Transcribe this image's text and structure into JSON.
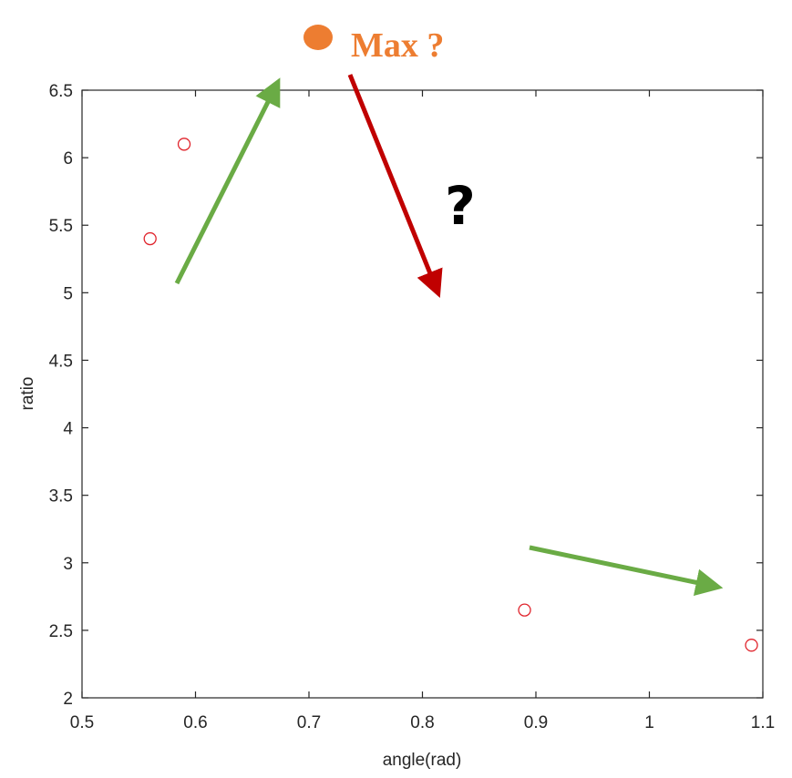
{
  "colors": {
    "marker": "#E0242C",
    "green_arrow": "#6AAB45",
    "red_arrow": "#C00000",
    "max_point": "#ED7D31",
    "axis": "#262626"
  },
  "chart_data": {
    "type": "scatter",
    "xlabel": "angle(rad)",
    "ylabel": "ratio",
    "xlim": [
      0.5,
      1.1
    ],
    "ylim": [
      2,
      6.5
    ],
    "xticks": [
      0.5,
      0.6,
      0.7,
      0.8,
      0.9,
      1,
      1.1
    ],
    "yticks": [
      2,
      2.5,
      3,
      3.5,
      4,
      4.5,
      5,
      5.5,
      6,
      6.5
    ],
    "xtick_labels": [
      "0.5",
      "0.6",
      "0.7",
      "0.8",
      "0.9",
      "1",
      "1.1"
    ],
    "ytick_labels": [
      "2",
      "2.5",
      "3",
      "3.5",
      "4",
      "4.5",
      "5",
      "5.5",
      "6",
      "6.5"
    ],
    "grid": false,
    "marker": "open-circle",
    "points": [
      {
        "x": 0.56,
        "y": 5.4
      },
      {
        "x": 0.59,
        "y": 6.1
      },
      {
        "x": 0.89,
        "y": 2.65
      },
      {
        "x": 1.09,
        "y": 2.39
      }
    ],
    "annotations": {
      "max_label": "Max ?",
      "question_mark": "?"
    }
  }
}
